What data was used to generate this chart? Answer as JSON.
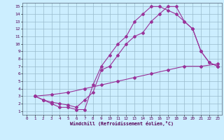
{
  "xlabel": "Windchill (Refroidissement éolien,°C)",
  "xlim": [
    -0.5,
    23.5
  ],
  "ylim": [
    0.5,
    15.5
  ],
  "xticks": [
    0,
    1,
    2,
    3,
    4,
    5,
    6,
    7,
    8,
    9,
    10,
    11,
    12,
    13,
    14,
    15,
    16,
    17,
    18,
    19,
    20,
    21,
    22,
    23
  ],
  "yticks": [
    1,
    2,
    3,
    4,
    5,
    6,
    7,
    8,
    9,
    10,
    11,
    12,
    13,
    14,
    15
  ],
  "line_color": "#993399",
  "background_color": "#cceeff",
  "grid_color": "#99bbcc",
  "line1_x": [
    1,
    2,
    3,
    4,
    5,
    6,
    7,
    8,
    9,
    10,
    11,
    12,
    13,
    14,
    15,
    16,
    17,
    18,
    19,
    20,
    21,
    22,
    23
  ],
  "line1_y": [
    3,
    2.5,
    2,
    1.5,
    1.5,
    1.2,
    1.2,
    4.5,
    7,
    8.5,
    10,
    11,
    13,
    14,
    15,
    15,
    14.5,
    14,
    13,
    12,
    9,
    7.5,
    7
  ],
  "line2_x": [
    1,
    2,
    3,
    4,
    5,
    6,
    7,
    8,
    9,
    10,
    11,
    12,
    13,
    14,
    15,
    16,
    17,
    18,
    19,
    20,
    21,
    22,
    23
  ],
  "line2_y": [
    3,
    2.5,
    2.2,
    2.0,
    1.8,
    1.5,
    2.5,
    3.5,
    6.5,
    7,
    8.5,
    10,
    11,
    11.5,
    13,
    14,
    15,
    15,
    13,
    12,
    9,
    7.5,
    7
  ],
  "line3_x": [
    1,
    3,
    5,
    7,
    9,
    11,
    13,
    15,
    17,
    19,
    21,
    23
  ],
  "line3_y": [
    3,
    3.2,
    3.5,
    4,
    4.5,
    5,
    5.5,
    6,
    6.5,
    7,
    7,
    7.3
  ]
}
